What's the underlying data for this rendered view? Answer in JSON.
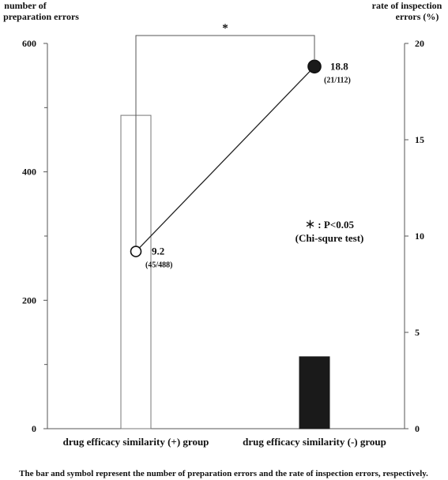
{
  "chart_data": {
    "type": "bar+line",
    "categories": [
      "drug efficacy similarity (+) group",
      "drug efficacy similarity (-) group"
    ],
    "y_left": {
      "label_line1": "number of",
      "label_line2": "preparation errors",
      "range": [
        0,
        600
      ],
      "ticks": [
        0,
        200,
        400,
        600
      ],
      "minor_ticks": [
        100,
        300,
        500
      ]
    },
    "y_right": {
      "label_line1": "rate of inspection",
      "label_line2": "errors (%)",
      "range": [
        0,
        20
      ],
      "ticks": [
        0,
        5,
        10,
        15,
        20
      ]
    },
    "bars": [
      {
        "category": "drug efficacy similarity (+) group",
        "value": 488,
        "style": "open"
      },
      {
        "category": "drug efficacy similarity (-) group",
        "value": 112,
        "style": "filled"
      }
    ],
    "points": [
      {
        "category": "drug efficacy similarity (+) group",
        "value": 9.2,
        "label": "9.2",
        "sublabel": "(45/488)",
        "style": "open"
      },
      {
        "category": "drug efficacy similarity (-) group",
        "value": 18.8,
        "label": "18.8",
        "sublabel": "(21/112)",
        "style": "filled"
      }
    ],
    "significance_marker": "*",
    "legend_note_line1": "＊ : P<0.05",
    "legend_note_line2": "(Chi-squre test)",
    "caption": "The bar and symbol represent the number of preparation errors and the rate of inspection errors, respectively.",
    "colors": {
      "filled": "#1a1a1a",
      "axis": "#555555",
      "open_bar": "#777777"
    }
  }
}
